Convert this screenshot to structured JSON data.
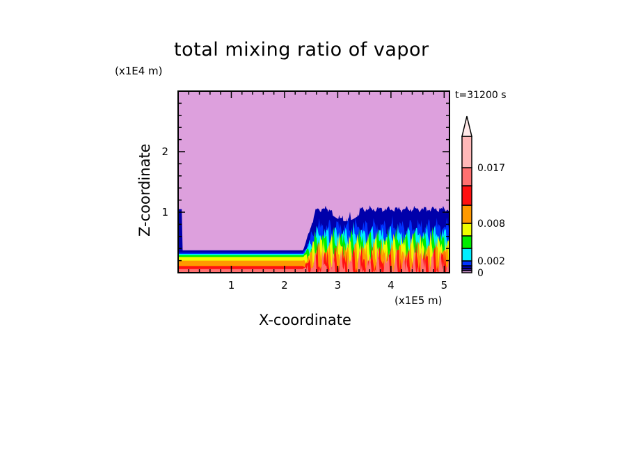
{
  "chart_data": {
    "type": "heatmap",
    "subtype": "filled-contour",
    "title": "total mixing ratio of vapor",
    "xlabel": "X-coordinate",
    "ylabel": "Z-coordinate",
    "x_unit": "(x1E5 m)",
    "z_unit": "(x1E4 m)",
    "time_label": "t=31200 s",
    "xlim": [
      0,
      5.1
    ],
    "ylim": [
      0,
      3.0
    ],
    "x_ticks": [
      "1",
      "2",
      "3",
      "4",
      "5"
    ],
    "y_ticks": [
      "1",
      "2"
    ],
    "grid": false,
    "colorbar": {
      "placement": "right",
      "extend": "max",
      "tick_labels": [
        {
          "label": "0",
          "value": 0
        },
        {
          "label": "0.002",
          "value": 0.002
        },
        {
          "label": "0.008",
          "value": 0.008
        },
        {
          "label": "0.017",
          "value": 0.017
        }
      ],
      "colors": [
        "#dda0dd",
        "#3d1a9e",
        "#0000aa",
        "#0033ff",
        "#00eeff",
        "#00ee00",
        "#eeff00",
        "#ff9900",
        "#ff1111",
        "#ff7070",
        "#ffb8b8",
        "#ffe8e8"
      ]
    }
  }
}
